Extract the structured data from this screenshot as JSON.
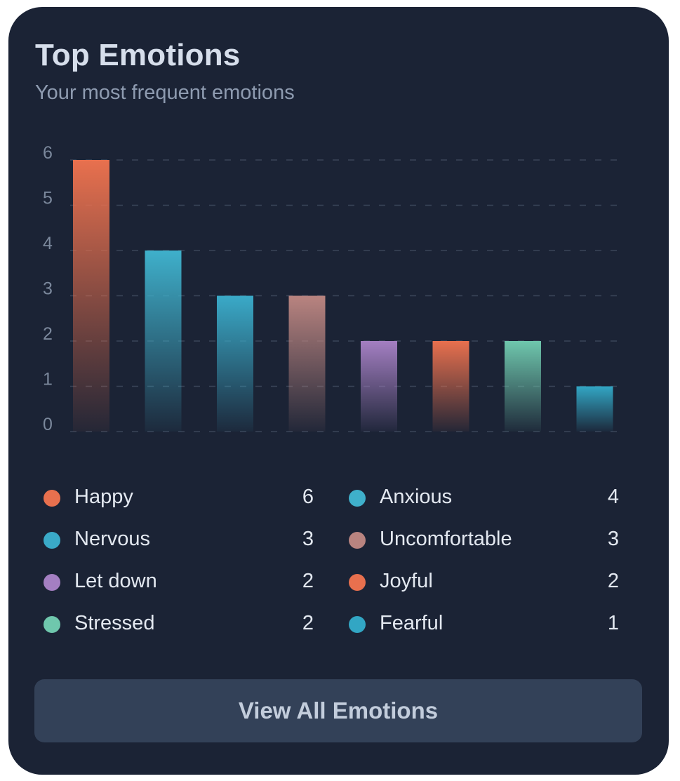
{
  "card": {
    "title": "Top Emotions",
    "subtitle": "Your most frequent emotions"
  },
  "chart_data": {
    "type": "bar",
    "title": "",
    "xlabel": "",
    "ylabel": "",
    "ylim": [
      0,
      6
    ],
    "yticks": [
      "0",
      "1",
      "2",
      "3",
      "4",
      "5",
      "6"
    ],
    "grid": "dashed horizontal",
    "categories": [
      "Happy",
      "Anxious",
      "Nervous",
      "Uncomfortable",
      "Let down",
      "Joyful",
      "Stressed",
      "Fearful"
    ],
    "values": [
      6,
      4,
      3,
      3,
      2,
      2,
      2,
      1
    ],
    "colors": [
      "#e8704e",
      "#3fb0cb",
      "#3aaac8",
      "#b98480",
      "#a47fc2",
      "#e8704e",
      "#6fc7ad",
      "#32a6c4"
    ]
  },
  "legend": [
    {
      "label": "Happy",
      "value": "6",
      "color": "#e8704e"
    },
    {
      "label": "Anxious",
      "value": "4",
      "color": "#3fb0cb"
    },
    {
      "label": "Nervous",
      "value": "3",
      "color": "#3aaac8"
    },
    {
      "label": "Uncomfortable",
      "value": "3",
      "color": "#b98480"
    },
    {
      "label": "Let down",
      "value": "2",
      "color": "#a47fc2"
    },
    {
      "label": "Joyful",
      "value": "2",
      "color": "#e8704e"
    },
    {
      "label": "Stressed",
      "value": "2",
      "color": "#6fc7ad"
    },
    {
      "label": "Fearful",
      "value": "1",
      "color": "#32a6c4"
    }
  ],
  "button": {
    "label": "View All Emotions"
  }
}
